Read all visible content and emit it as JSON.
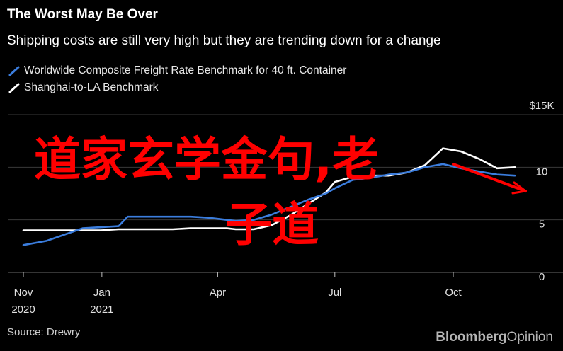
{
  "header": {
    "title": "The Worst May Be Over",
    "subtitle": "Shipping costs are still very high but they are trending down for a change"
  },
  "footer": {
    "source": "Source: Drewry",
    "brand_bold": "Bloomberg",
    "brand_light": "Opinion"
  },
  "overlay": {
    "line1": "道家玄学金句,老",
    "line2": "子道",
    "color": "#ff0000"
  },
  "chart_data": {
    "type": "line",
    "y_unit_label": "$15K",
    "ylim": [
      0,
      15
    ],
    "yticks": [
      0,
      5,
      10,
      15
    ],
    "ytick_labels": [
      "0",
      "5",
      "10",
      "$15K"
    ],
    "xlim": [
      "2020-11-01",
      "2021-12-01"
    ],
    "xticks": [
      {
        "date": "2020-11-01",
        "label1": "Nov",
        "label2": "2020"
      },
      {
        "date": "2021-01-01",
        "label1": "Jan",
        "label2": "2021"
      },
      {
        "date": "2021-04-01",
        "label1": "Apr",
        "label2": ""
      },
      {
        "date": "2021-07-01",
        "label1": "Jul",
        "label2": ""
      },
      {
        "date": "2021-10-01",
        "label1": "Oct",
        "label2": ""
      }
    ],
    "grid": true,
    "legend_position": "top-left",
    "series": [
      {
        "name": "Worldwide Composite Freight Rate Benchmark for 40 ft. Container",
        "color": "#3b7ddd",
        "x": [
          "2020-11-01",
          "2020-11-19",
          "2020-12-03",
          "2020-12-17",
          "2020-12-31",
          "2021-01-14",
          "2021-01-21",
          "2021-02-11",
          "2021-02-25",
          "2021-03-11",
          "2021-03-25",
          "2021-04-08",
          "2021-04-15",
          "2021-04-29",
          "2021-05-13",
          "2021-05-27",
          "2021-06-10",
          "2021-06-24",
          "2021-07-01",
          "2021-07-15",
          "2021-07-29",
          "2021-08-12",
          "2021-08-26",
          "2021-09-09",
          "2021-09-23",
          "2021-10-07",
          "2021-10-21",
          "2021-11-04",
          "2021-11-18"
        ],
        "y": [
          2.6,
          3.0,
          3.6,
          4.2,
          4.3,
          4.4,
          5.3,
          5.3,
          5.3,
          5.3,
          5.2,
          5.0,
          4.9,
          5.0,
          5.5,
          6.2,
          6.9,
          7.5,
          8.0,
          8.8,
          9.0,
          9.3,
          9.5,
          10.0,
          10.3,
          9.9,
          9.6,
          9.3,
          9.2
        ]
      },
      {
        "name": "Shanghai-to-LA Benchmark",
        "color": "#ffffff",
        "x": [
          "2020-11-01",
          "2020-12-03",
          "2020-12-17",
          "2020-12-31",
          "2021-01-14",
          "2021-01-21",
          "2021-02-11",
          "2021-02-25",
          "2021-03-11",
          "2021-03-25",
          "2021-04-08",
          "2021-04-15",
          "2021-04-29",
          "2021-05-13",
          "2021-05-27",
          "2021-06-10",
          "2021-06-24",
          "2021-07-01",
          "2021-07-15",
          "2021-07-29",
          "2021-08-12",
          "2021-08-26",
          "2021-09-09",
          "2021-09-23",
          "2021-10-07",
          "2021-10-21",
          "2021-11-04",
          "2021-11-18"
        ],
        "y": [
          4.0,
          4.0,
          4.0,
          4.0,
          4.1,
          4.1,
          4.1,
          4.1,
          4.2,
          4.2,
          4.2,
          4.1,
          4.1,
          4.5,
          5.4,
          6.5,
          7.6,
          8.6,
          9.1,
          9.2,
          9.2,
          9.5,
          10.2,
          11.8,
          11.5,
          10.8,
          9.9,
          10.0
        ]
      }
    ]
  }
}
